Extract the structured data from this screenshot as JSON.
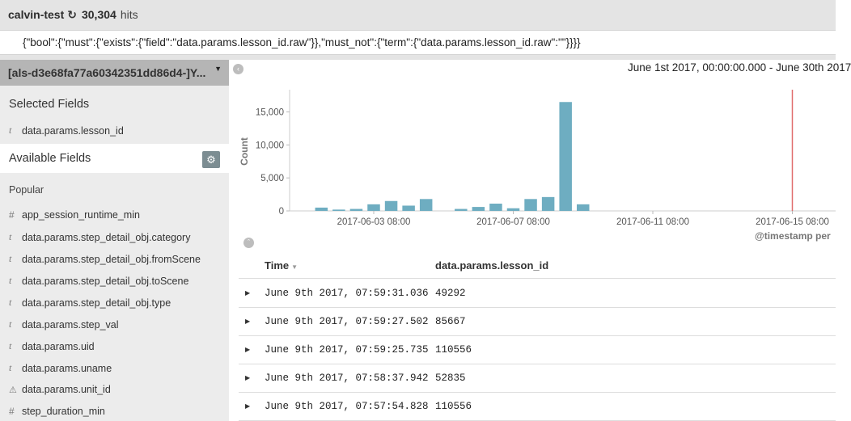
{
  "header": {
    "title": "calvin-test",
    "reload_icon": "refresh-icon",
    "hits_count": "30,304",
    "hits_label": "hits"
  },
  "query": {
    "value": "{\"bool\":{\"must\":{\"exists\":{\"field\":\"data.params.lesson_id.raw\"}},\"must_not\":{\"term\":{\"data.params.lesson_id.raw\":\"\"}}}}"
  },
  "sidebar": {
    "index_pattern": "[als-d3e68fa77a60342351dd86d4-]Y...",
    "selected_title": "Selected Fields",
    "selected_fields": [
      {
        "type": "t",
        "name": "data.params.lesson_id"
      }
    ],
    "available_title": "Available Fields",
    "popular_label": "Popular",
    "available_fields": [
      {
        "type": "#",
        "name": "app_session_runtime_min"
      },
      {
        "type": "t",
        "name": "data.params.step_detail_obj.category"
      },
      {
        "type": "t",
        "name": "data.params.step_detail_obj.fromScene"
      },
      {
        "type": "t",
        "name": "data.params.step_detail_obj.toScene"
      },
      {
        "type": "t",
        "name": "data.params.step_detail_obj.type"
      },
      {
        "type": "t",
        "name": "data.params.step_val"
      },
      {
        "type": "t",
        "name": "data.params.uid"
      },
      {
        "type": "t",
        "name": "data.params.uname"
      },
      {
        "type": "warn",
        "name": "data.params.unit_id"
      },
      {
        "type": "#",
        "name": "step_duration_min"
      }
    ]
  },
  "main": {
    "time_range": "June 1st 2017, 00:00:00.000 - June 30th 2017",
    "x_axis_title": "@timestamp per",
    "table": {
      "col_time": "Time",
      "col_field": "data.params.lesson_id",
      "rows": [
        {
          "time": "June 9th 2017, 07:59:31.036",
          "value": "49292"
        },
        {
          "time": "June 9th 2017, 07:59:27.502",
          "value": "85667"
        },
        {
          "time": "June 9th 2017, 07:59:25.735",
          "value": "110556"
        },
        {
          "time": "June 9th 2017, 07:58:37.942",
          "value": "52835"
        },
        {
          "time": "June 9th 2017, 07:57:54.828",
          "value": "110556"
        }
      ]
    }
  },
  "chart_data": {
    "type": "bar",
    "ylabel": "Count",
    "xlabel": "@timestamp per",
    "ylim": [
      0,
      18000
    ],
    "yticks": [
      0,
      5000,
      10000,
      15000
    ],
    "ytick_labels": [
      "0",
      "5,000",
      "10,000",
      "15,000"
    ],
    "xticks": [
      "2017-06-03 08:00",
      "2017-06-07 08:00",
      "2017-06-11 08:00",
      "2017-06-15 08:00"
    ],
    "bar_color": "#6eadc1",
    "marker_color": "#e06c6c",
    "x": [
      "2017-06-01 20:00",
      "2017-06-02 08:00",
      "2017-06-02 20:00",
      "2017-06-03 08:00",
      "2017-06-03 20:00",
      "2017-06-04 08:00",
      "2017-06-04 20:00",
      "2017-06-05 08:00",
      "2017-06-05 20:00",
      "2017-06-06 08:00",
      "2017-06-06 20:00",
      "2017-06-07 08:00",
      "2017-06-07 20:00",
      "2017-06-08 08:00",
      "2017-06-08 20:00",
      "2017-06-09 08:00",
      "2017-06-09 20:00"
    ],
    "values": [
      500,
      200,
      300,
      1000,
      1500,
      800,
      1800,
      0,
      300,
      600,
      1100,
      400,
      1800,
      2100,
      16500,
      1000,
      0
    ],
    "marker_x": "2017-06-15 08:00"
  }
}
